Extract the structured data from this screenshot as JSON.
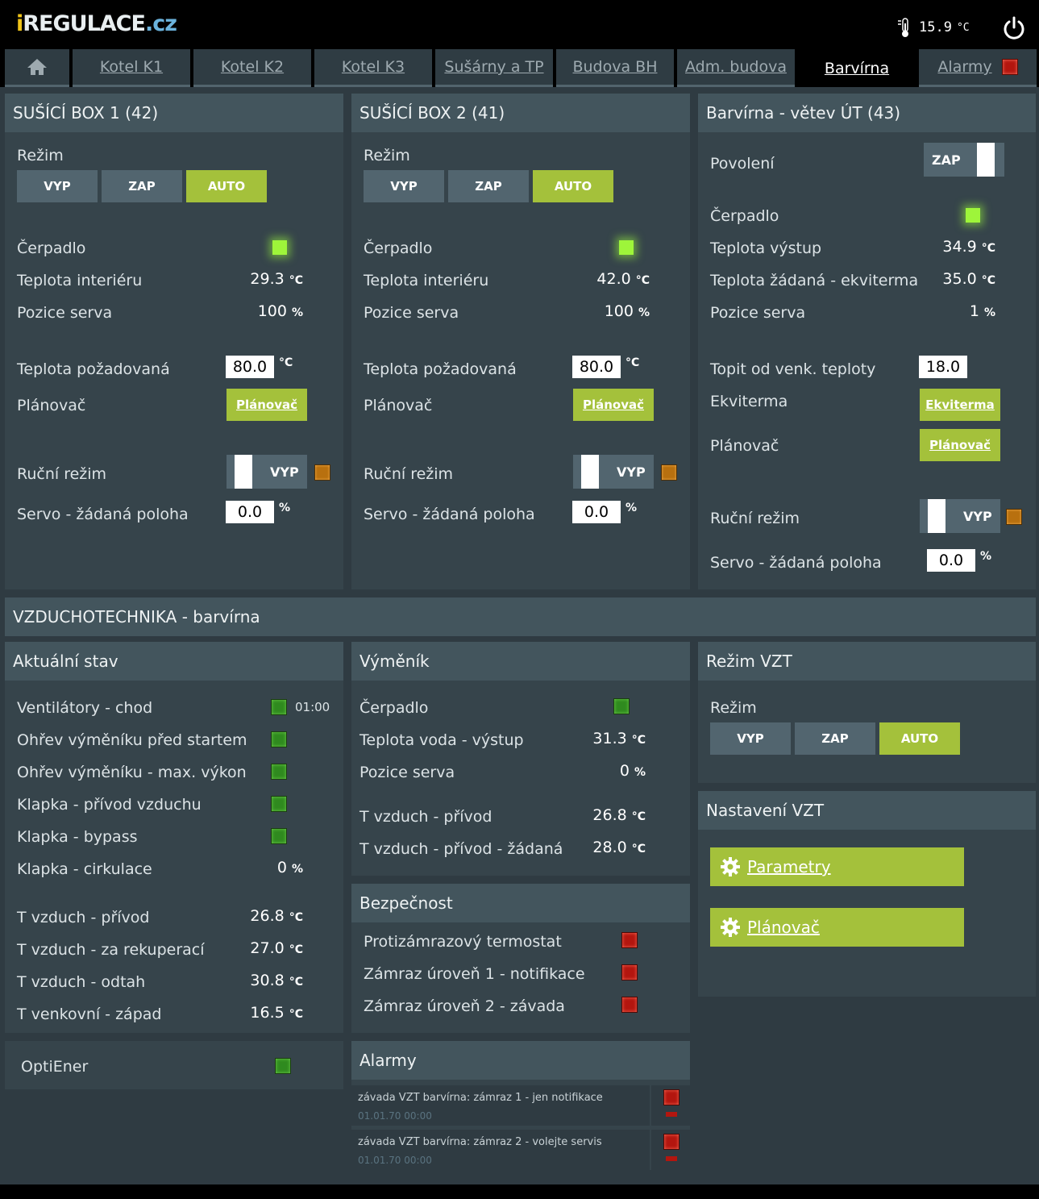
{
  "header": {
    "logo": {
      "part1": "i",
      "part2": "REGULACE",
      "part3": ".cz"
    },
    "outdoor_temp": "15.9",
    "temp_unit": "°C",
    "icons": {
      "thermometer": "thermometer-icon",
      "power": "power-icon"
    }
  },
  "tabs": [
    {
      "label": "Kotel K1"
    },
    {
      "label": "Kotel K2"
    },
    {
      "label": "Kotel K3"
    },
    {
      "label": "Sušárny a TP"
    },
    {
      "label": "Budova BH"
    },
    {
      "label": "Adm. budova"
    },
    {
      "label": "Barvírna",
      "active": true
    },
    {
      "label": "Alarmy",
      "alarm": true
    }
  ],
  "units": {
    "c": "°C",
    "pct": "%"
  },
  "box1": {
    "title": "SUŠÍCÍ BOX 1 (42)",
    "mode_label": "Režim",
    "modes": [
      "VYP",
      "ZAP",
      "AUTO"
    ],
    "active_mode": "AUTO",
    "pump_label": "Čerpadlo",
    "temp_int_label": "Teplota interiéru",
    "temp_int": "29.3",
    "servo_pos_label": "Pozice serva",
    "servo_pos": "100",
    "temp_req_label": "Teplota požadovaná",
    "temp_req": "80.0",
    "planner_label": "Plánovač",
    "planner_btn": "Plánovač",
    "manual_label": "Ruční režim",
    "manual_state": "VYP",
    "servo_set_label": "Servo - žádaná poloha",
    "servo_set": "0.0"
  },
  "box2": {
    "title": "SUŠÍCÍ BOX 2 (41)",
    "mode_label": "Režim",
    "modes": [
      "VYP",
      "ZAP",
      "AUTO"
    ],
    "active_mode": "AUTO",
    "pump_label": "Čerpadlo",
    "temp_int_label": "Teplota interiéru",
    "temp_int": "42.0",
    "servo_pos_label": "Pozice serva",
    "servo_pos": "100",
    "temp_req_label": "Teplota požadovaná",
    "temp_req": "80.0",
    "planner_label": "Plánovač",
    "planner_btn": "Plánovač",
    "manual_label": "Ruční režim",
    "manual_state": "VYP",
    "servo_set_label": "Servo - žádaná poloha",
    "servo_set": "0.0"
  },
  "branch": {
    "title": "Barvírna - větev ÚT (43)",
    "enable_label": "Povolení",
    "enable_state": "ZAP",
    "pump_label": "Čerpadlo",
    "temp_out_label": "Teplota výstup",
    "temp_out": "34.9",
    "temp_req_label": "Teplota žádaná - ekviterma",
    "temp_req": "35.0",
    "servo_pos_label": "Pozice serva",
    "servo_pos": "1",
    "heat_from_label": "Topit od venk. teploty",
    "heat_from": "18.0",
    "ekv_label": "Ekviterma",
    "ekv_btn": "Ekviterma",
    "planner_label": "Plánovač",
    "planner_btn": "Plánovač",
    "manual_label": "Ruční režim",
    "manual_state": "VYP",
    "servo_set_label": "Servo - žádaná poloha",
    "servo_set": "0.0"
  },
  "vzt": {
    "title": "VZDUCHOTECHNIKA - barvírna",
    "current": {
      "title": "Aktuální stav",
      "fans_label": "Ventilátory - chod",
      "fans_time": "01:00",
      "preheat_label": "Ohřev výměníku před startem",
      "maxheat_label": "Ohřev výměníku - max. výkon",
      "damper_in_label": "Klapka - přívod vzduchu",
      "damper_bypass_label": "Klapka - bypass",
      "damper_circ_label": "Klapka - cirkulace",
      "damper_circ": "0",
      "t_supply_label": "T vzduch - přívod",
      "t_supply": "26.8",
      "t_recup_label": "T vzduch - za rekuperací",
      "t_recup": "27.0",
      "t_exhaust_label": "T vzduch - odtah",
      "t_exhaust": "30.8",
      "t_outdoor_label": "T venkovní - západ",
      "t_outdoor": "16.5"
    },
    "optiener_label": "OptiEner",
    "exchanger": {
      "title": "Výměník",
      "pump_label": "Čerpadlo",
      "t_water_label": "Teplota voda - výstup",
      "t_water": "31.3",
      "servo_label": "Pozice serva",
      "servo": "0",
      "t_supply_label": "T vzduch - přívod",
      "t_supply": "26.8",
      "t_supply_req_label": "T vzduch - přívod - žádaná",
      "t_supply_req": "28.0"
    },
    "safety": {
      "title": "Bezpečnost",
      "antifreeze_label": "Protizámrazový termostat",
      "freeze1_label": "Zámraz úroveň 1 - notifikace",
      "freeze2_label": "Zámraz úroveň 2 - závada"
    },
    "alarms": {
      "title": "Alarmy",
      "items": [
        {
          "msg": "závada VZT barvírna: zámraz 1 - jen notifikace",
          "time": "01.01.70 00:00"
        },
        {
          "msg": "závada VZT barvírna: zámraz 2 - volejte servis",
          "time": "01.01.70 00:00"
        }
      ]
    },
    "mode": {
      "title": "Režim VZT",
      "mode_label": "Režim",
      "modes": [
        "VYP",
        "ZAP",
        "AUTO"
      ],
      "active_mode": "AUTO"
    },
    "settings": {
      "title": "Nastavení VZT",
      "params_btn": "Parametry",
      "planner_btn": "Plánovač"
    }
  },
  "colors": {
    "accent": "#a4c13b",
    "led_on": "#9ef53a",
    "alarm": "#b3160f",
    "manual": "#b8700f"
  }
}
